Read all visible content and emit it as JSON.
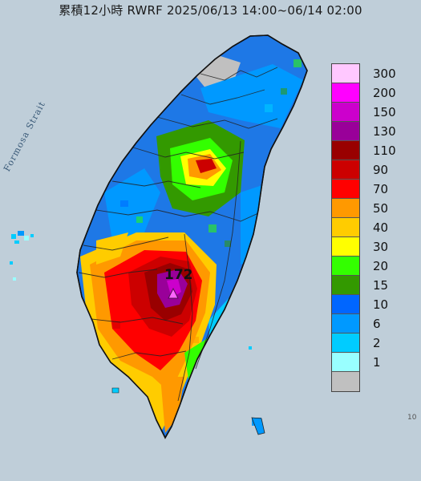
{
  "title": "累積12小時 RWRF 2025/06/13 14:00~06/14 02:00",
  "sea_label": "Formosa Strait",
  "max_label": "172",
  "corner_tag": "10",
  "legend": [
    {
      "label": "300",
      "color": "#ffc8ff"
    },
    {
      "label": "200",
      "color": "#ff00ff"
    },
    {
      "label": "150",
      "color": "#cc00cc"
    },
    {
      "label": "130",
      "color": "#990099"
    },
    {
      "label": "110",
      "color": "#990000"
    },
    {
      "label": "90",
      "color": "#cc0000"
    },
    {
      "label": "70",
      "color": "#ff0000"
    },
    {
      "label": "50",
      "color": "#ff9900"
    },
    {
      "label": "40",
      "color": "#ffcc00"
    },
    {
      "label": "30",
      "color": "#ffff00"
    },
    {
      "label": "20",
      "color": "#33ff00"
    },
    {
      "label": "15",
      "color": "#339900"
    },
    {
      "label": "10",
      "color": "#0066ff"
    },
    {
      "label": "6",
      "color": "#0099ff"
    },
    {
      "label": "2",
      "color": "#00ccff"
    },
    {
      "label": "1",
      "color": "#99ffff"
    },
    {
      "label": "",
      "color": "#c0c0c0"
    }
  ]
}
